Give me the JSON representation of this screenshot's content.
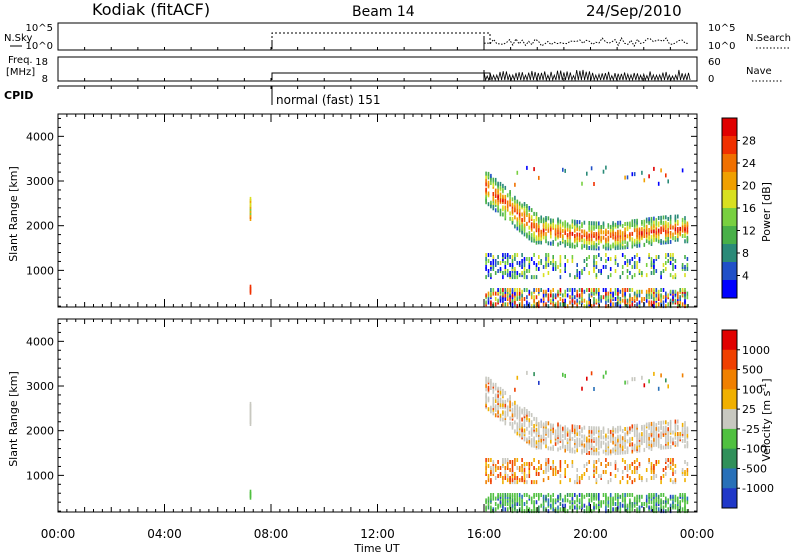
{
  "header": {
    "station": "Kodiak (fitACF)",
    "beam": "Beam 14",
    "date": "24/Sep/2010"
  },
  "top_panels": {
    "nsky_label": "N.Sky",
    "nsky_ticks": [
      "10^5",
      "10^0"
    ],
    "nsearch_label": "N.Search",
    "nsearch_ticks": [
      "10^5",
      "10^0"
    ],
    "freq_label_1": "Freq.",
    "freq_label_2": "[MHz]",
    "freq_ticks": [
      "18",
      "8"
    ],
    "nave_label": "Nave",
    "nave_ticks": [
      "60",
      "0"
    ],
    "cpid_label": "CPID",
    "cpid_text": "normal (fast) 151"
  },
  "colors": {
    "power": [
      "#0000ff",
      "#2050c8",
      "#2a8a78",
      "#48b048",
      "#78d040",
      "#d8e020",
      "#f0a000",
      "#f07000",
      "#f03000",
      "#e00000"
    ],
    "velocity": [
      "#2038c8",
      "#2870b8",
      "#30905a",
      "#50c040",
      "#c8c8c0",
      "#f0b000",
      "#f08000",
      "#f04000",
      "#e00000"
    ],
    "ground": "#c8c8c0"
  },
  "chart_data": [
    {
      "type": "heatmap",
      "name": "power",
      "ylabel": "Slant Range [km]",
      "xlabel": "",
      "x_range_hours": [
        0,
        24
      ],
      "ylim": [
        180,
        4500
      ],
      "y_ticks": [
        1000,
        2000,
        3000,
        4000
      ],
      "colorbar_label": "Power [dB]",
      "colorbar_ticks": [
        "4",
        "8",
        "12",
        "16",
        "20",
        "24",
        "28"
      ],
      "colorbar_range": [
        0,
        32
      ]
    },
    {
      "type": "heatmap",
      "name": "velocity",
      "ylabel": "Slant Range [km]",
      "xlabel": "Time UT",
      "x_range_hours": [
        0,
        24
      ],
      "x_ticks": [
        "00:00",
        "04:00",
        "08:00",
        "12:00",
        "16:00",
        "20:00",
        "00:00"
      ],
      "ylim": [
        180,
        4500
      ],
      "y_ticks": [
        1000,
        2000,
        3000,
        4000
      ],
      "colorbar_label": "Velocity [m s",
      "colorbar_label_sup": "-1",
      "colorbar_label_end": "]",
      "colorbar_ticks": [
        "-1000",
        "-500",
        "-100",
        "-25",
        "25",
        "100",
        "500",
        "1000"
      ]
    }
  ]
}
